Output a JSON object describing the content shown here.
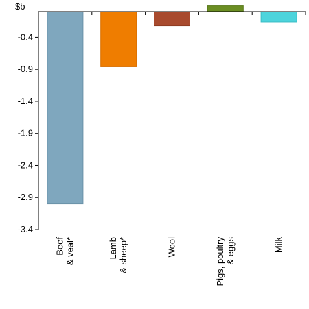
{
  "chart_data": {
    "type": "bar",
    "unit_label": "$b",
    "categories": [
      [
        "Beef",
        "& veal*"
      ],
      [
        "Lamb",
        "& sheep*"
      ],
      [
        "Wool"
      ],
      [
        "Pigs, poultry",
        "& eggs"
      ],
      [
        "Milk"
      ]
    ],
    "values": [
      -3.0,
      -0.86,
      -0.22,
      0.09,
      -0.16
    ],
    "colors": [
      "#7fa7be",
      "#ef7d00",
      "#a84a2e",
      "#6b8e23",
      "#4dd4dc"
    ],
    "border_colors": [
      "#6a92a8",
      "#d96f00",
      "#8f3c22",
      "#5a7a1c",
      "#3bbcc4"
    ],
    "ylim": [
      -3.4,
      0.0
    ],
    "yticks": [
      -0.4,
      -0.9,
      -1.4,
      -1.9,
      -2.4,
      -2.9,
      -3.4
    ],
    "grid": false
  }
}
